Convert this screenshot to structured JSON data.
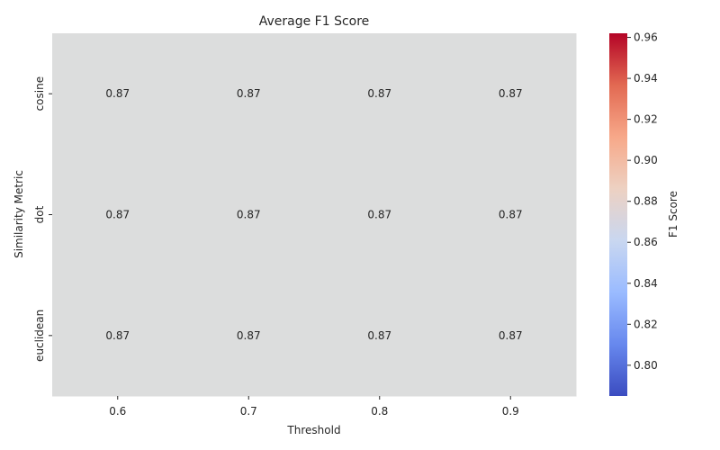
{
  "chart_data": {
    "type": "heatmap",
    "title": "Average F1 Score",
    "xlabel": "Threshold",
    "ylabel": "Similarity Metric",
    "x_categories": [
      "0.6",
      "0.7",
      "0.8",
      "0.9"
    ],
    "y_categories": [
      "cosine",
      "dot",
      "euclidean"
    ],
    "values": [
      [
        0.87,
        0.87,
        0.87,
        0.87
      ],
      [
        0.87,
        0.87,
        0.87,
        0.87
      ],
      [
        0.87,
        0.87,
        0.87,
        0.87
      ]
    ],
    "cell_labels": [
      [
        "0.87",
        "0.87",
        "0.87",
        "0.87"
      ],
      [
        "0.87",
        "0.87",
        "0.87",
        "0.87"
      ],
      [
        "0.87",
        "0.87",
        "0.87",
        "0.87"
      ]
    ],
    "colormap": "coolwarm",
    "cell_color": "#dcdddd",
    "colorbar": {
      "label": "F1 Score",
      "range": [
        0.785,
        0.962
      ],
      "ticks": [
        "0.80",
        "0.82",
        "0.84",
        "0.86",
        "0.88",
        "0.90",
        "0.92",
        "0.94",
        "0.96"
      ],
      "tick_values": [
        0.8,
        0.82,
        0.84,
        0.86,
        0.88,
        0.9,
        0.92,
        0.94,
        0.96
      ],
      "color_stops": [
        "#3b4cc0",
        "#6788ee",
        "#9abbff",
        "#c9d7f0",
        "#edd1c2",
        "#f7a889",
        "#e26952",
        "#b40426"
      ]
    },
    "grid": false,
    "legend": "colorbar-right"
  }
}
